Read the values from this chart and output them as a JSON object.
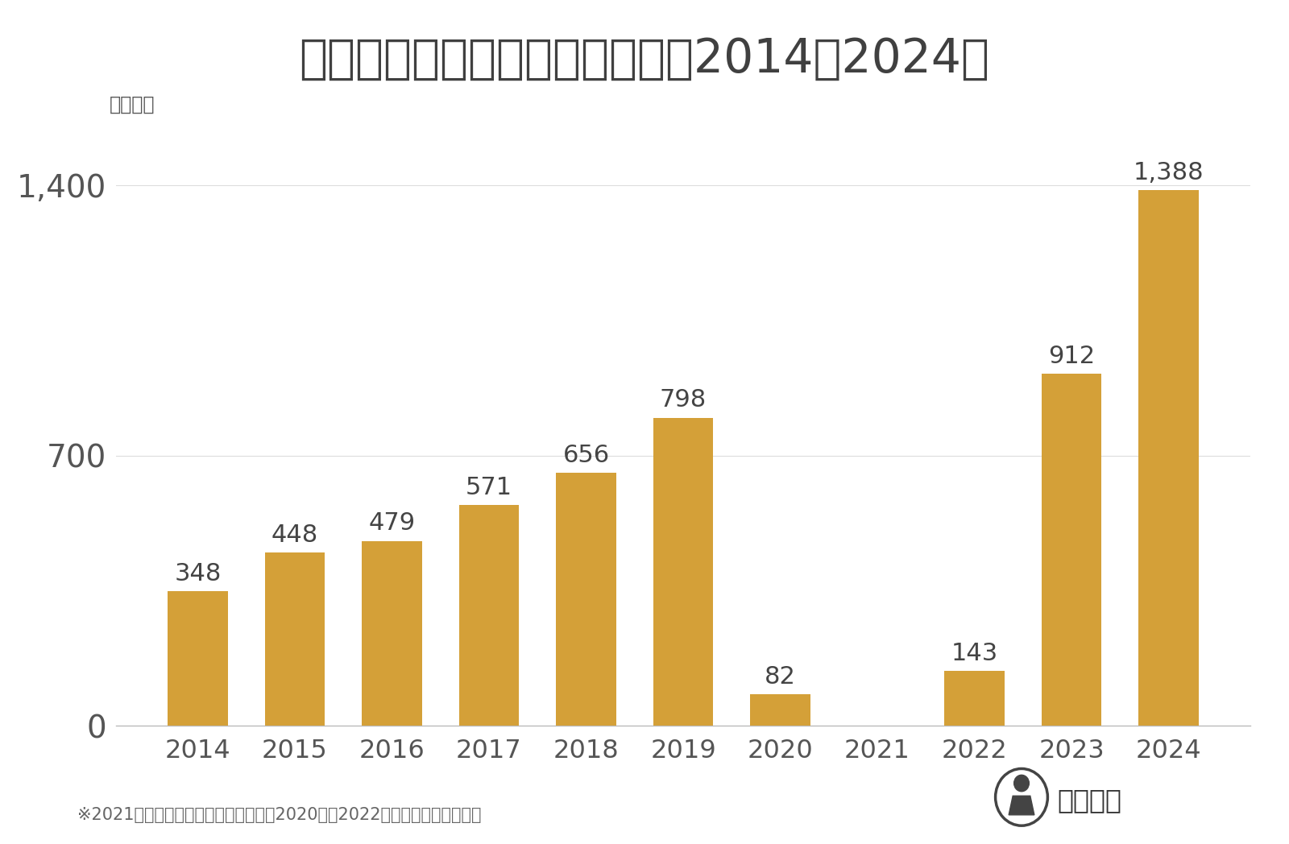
{
  "title": "訪日フランス人消費額の推移（2014〜2024）",
  "ylabel": "（億円）",
  "years": [
    2014,
    2015,
    2016,
    2017,
    2018,
    2019,
    2020,
    2021,
    2022,
    2023,
    2024
  ],
  "values": [
    348,
    448,
    479,
    571,
    656,
    798,
    82,
    0,
    143,
    912,
    1388
  ],
  "bar_color": "#D4A038",
  "yticks": [
    0,
    700,
    1400
  ],
  "ylim": [
    0,
    1530
  ],
  "footnote": "※2021年は国別消費額のデータなし。2020年、2022年は観光庁の試算値。",
  "logo_text": "訪日ラボ",
  "background_color": "#ffffff",
  "title_color": "#404040",
  "label_color": "#555555",
  "value_label_color": "#444444",
  "title_fontsize": 42,
  "ytick_fontsize": 28,
  "xtick_fontsize": 23,
  "value_fontsize": 22,
  "footnote_fontsize": 15,
  "ylabel_fontsize": 17
}
